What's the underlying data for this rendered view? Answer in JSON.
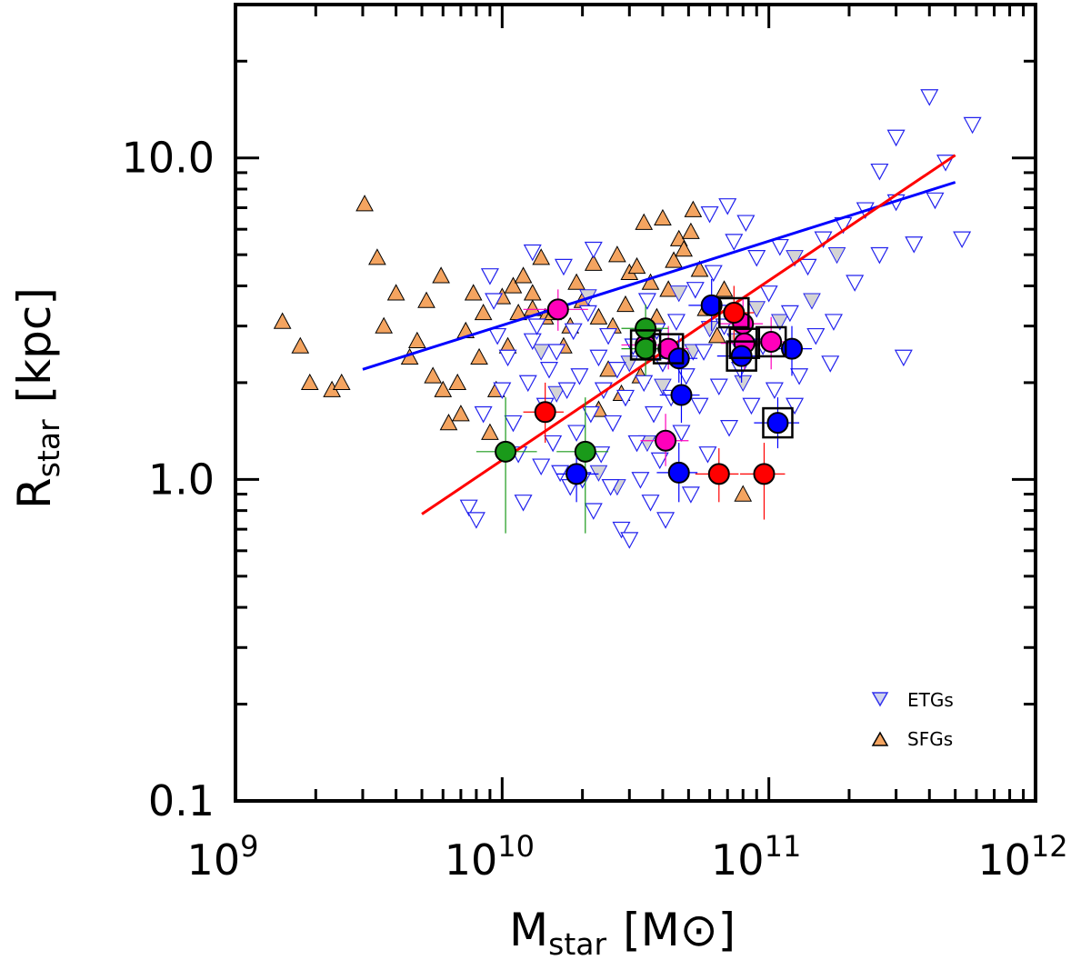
{
  "chart_data": {
    "type": "scatter",
    "title": "",
    "xlabel": {
      "main": "M",
      "sub": "star",
      "unit": "[M⊙]"
    },
    "ylabel": {
      "main": "R",
      "sub": "star",
      "unit": "[kpc]"
    },
    "xscale": "log",
    "yscale": "log",
    "xlim": [
      1000000000.0,
      1000000000000.0
    ],
    "ylim": [
      0.1,
      30
    ],
    "x_ticks": [
      {
        "value": 1000000000.0,
        "base": "10",
        "exp": "9"
      },
      {
        "value": 10000000000.0,
        "base": "10",
        "exp": "10"
      },
      {
        "value": 100000000000.0,
        "base": "10",
        "exp": "11"
      },
      {
        "value": 1000000000000.0,
        "base": "10",
        "exp": "12"
      }
    ],
    "y_ticks": [
      {
        "value": 0.1,
        "label": "0.1"
      },
      {
        "value": 1,
        "label": "1.0"
      },
      {
        "value": 10,
        "label": "10.0"
      }
    ],
    "grid": false,
    "legend": {
      "position": "bottom-right",
      "entries": [
        {
          "label": "ETGs",
          "marker": "triangle-down",
          "color": "#ccd0e8",
          "edge": "#3333ee"
        },
        {
          "label": "SFGs",
          "marker": "triangle-up",
          "color": "#f4a460",
          "edge": "#000000"
        }
      ]
    },
    "colors": {
      "etg_edge": "#2222ee",
      "etg_fill_light": "#d4d4d4",
      "sfg_fill": "#f4a460",
      "blue": "#0000ff",
      "red": "#ff0000",
      "green": "#1a9a1a",
      "magenta": "#ff1ab4",
      "blue_line": "#0000ff",
      "red_line": "#ff0000"
    },
    "fits": [
      {
        "color": "#0000ff",
        "points": [
          [
            3000000000.0,
            2.2
          ],
          [
            500000000000.0,
            8.4
          ]
        ]
      },
      {
        "color": "#ff0000",
        "points": [
          [
            5000000000.0,
            0.78
          ],
          [
            500000000000.0,
            10.2
          ]
        ]
      }
    ],
    "sfgs": [
      [
        1500000000.0,
        3.1
      ],
      [
        1750000000.0,
        2.6
      ],
      [
        1900000000.0,
        2.0
      ],
      [
        2300000000.0,
        1.9
      ],
      [
        2500000000.0,
        2.0
      ],
      [
        3050000000.0,
        7.2
      ],
      [
        3400000000.0,
        4.9
      ],
      [
        3600000000.0,
        3.0
      ],
      [
        4000000000.0,
        3.8
      ],
      [
        4500000000.0,
        2.4
      ],
      [
        4800000000.0,
        2.7
      ],
      [
        5200000000.0,
        3.6
      ],
      [
        5500000000.0,
        2.1
      ],
      [
        5900000000.0,
        4.3
      ],
      [
        6000000000.0,
        1.9
      ],
      [
        6300000000.0,
        1.5
      ],
      [
        6800000000.0,
        2.0
      ],
      [
        7000000000.0,
        1.6
      ],
      [
        7300000000.0,
        2.9
      ],
      [
        7800000000.0,
        3.8
      ],
      [
        8200000000.0,
        2.4
      ],
      [
        8500000000.0,
        3.3
      ],
      [
        9000000000.0,
        1.4
      ],
      [
        9500000000.0,
        1.9
      ],
      [
        10000000000.0,
        3.7
      ],
      [
        10500000000.0,
        2.6
      ],
      [
        11000000000.0,
        4.0
      ],
      [
        11500000000.0,
        3.3
      ],
      [
        12000000000.0,
        4.3
      ],
      [
        13000000000.0,
        3.8
      ],
      [
        14000000000.0,
        4.9
      ],
      [
        14500000000.0,
        3.2
      ],
      [
        15500000000.0,
        3.3
      ],
      [
        17000000000.0,
        2.6
      ],
      [
        18000000000.0,
        3.0
      ],
      [
        19000000000.0,
        4.1
      ],
      [
        20000000000.0,
        3.6
      ],
      [
        22000000000.0,
        4.7
      ],
      [
        23000000000.0,
        3.2
      ],
      [
        25000000000.0,
        2.2
      ],
      [
        26000000000.0,
        3.0
      ],
      [
        27000000000.0,
        5.0
      ],
      [
        29000000000.0,
        3.5
      ],
      [
        30000000000.0,
        4.4
      ],
      [
        32000000000.0,
        4.6
      ],
      [
        34000000000.0,
        6.3
      ],
      [
        36000000000.0,
        4.1
      ],
      [
        38000000000.0,
        3.2
      ],
      [
        40000000000.0,
        6.5
      ],
      [
        42000000000.0,
        3.9
      ],
      [
        44000000000.0,
        4.8
      ],
      [
        46000000000.0,
        5.6
      ],
      [
        48000000000.0,
        5.2
      ],
      [
        51000000000.0,
        5.9
      ],
      [
        52000000000.0,
        6.9
      ],
      [
        55000000000.0,
        4.5
      ],
      [
        58000000000.0,
        3.4
      ],
      [
        23000000000.0,
        1.65
      ],
      [
        28000000000.0,
        1.85
      ],
      [
        33000000000.0,
        2.1
      ],
      [
        64000000000.0,
        2.8
      ],
      [
        68000000000.0,
        3.9
      ],
      [
        80000000000.0,
        0.9
      ],
      [
        13000000000.0,
        3.4
      ]
    ],
    "etgs": [
      [
        7500000000.0,
        0.82
      ],
      [
        8000000000.0,
        0.75
      ],
      [
        8500000000.0,
        1.6
      ],
      [
        9000000000.0,
        4.3
      ],
      [
        9300000000.0,
        3.6
      ],
      [
        9600000000.0,
        2.8
      ],
      [
        10000000000.0,
        1.9
      ],
      [
        10500000000.0,
        2.4
      ],
      [
        11000000000.0,
        1.5
      ],
      [
        11500000000.0,
        1.2
      ],
      [
        12000000000.0,
        0.85
      ],
      [
        12500000000.0,
        2.0
      ],
      [
        13000000000.0,
        2.7
      ],
      [
        13500000000.0,
        3.0
      ],
      [
        14000000000.0,
        1.1
      ],
      [
        14500000000.0,
        1.7
      ],
      [
        15000000000.0,
        2.2
      ],
      [
        15500000000.0,
        1.3
      ],
      [
        16000000000.0,
        2.5
      ],
      [
        16500000000.0,
        1.05
      ],
      [
        17000000000.0,
        4.6
      ],
      [
        17500000000.0,
        1.9
      ],
      [
        18000000000.0,
        0.95
      ],
      [
        18500000000.0,
        2.9
      ],
      [
        19000000000.0,
        1.4
      ],
      [
        19500000000.0,
        2.1
      ],
      [
        20000000000.0,
        1.0
      ],
      [
        21000000000.0,
        3.3
      ],
      [
        21500000000.0,
        1.6
      ],
      [
        22000000000.0,
        0.8
      ],
      [
        23000000000.0,
        2.4
      ],
      [
        23500000000.0,
        1.2
      ],
      [
        24000000000.0,
        1.9
      ],
      [
        25000000000.0,
        2.8
      ],
      [
        25500000000.0,
        0.95
      ],
      [
        26000000000.0,
        1.5
      ],
      [
        27000000000.0,
        2.2
      ],
      [
        28000000000.0,
        0.7
      ],
      [
        29000000000.0,
        1.8
      ],
      [
        30000000000.0,
        0.65
      ],
      [
        31000000000.0,
        2.6
      ],
      [
        32000000000.0,
        1.3
      ],
      [
        33000000000.0,
        1.0
      ],
      [
        34000000000.0,
        2.0
      ],
      [
        35000000000.0,
        3.6
      ],
      [
        36000000000.0,
        0.85
      ],
      [
        37000000000.0,
        1.6
      ],
      [
        38000000000.0,
        2.9
      ],
      [
        39000000000.0,
        1.15
      ],
      [
        40000000000.0,
        2.3
      ],
      [
        41000000000.0,
        0.75
      ],
      [
        43000000000.0,
        1.8
      ],
      [
        45000000000.0,
        3.1
      ],
      [
        47000000000.0,
        1.4
      ],
      [
        49000000000.0,
        2.1
      ],
      [
        51000000000.0,
        0.9
      ],
      [
        53000000000.0,
        3.9
      ],
      [
        55000000000.0,
        1.7
      ],
      [
        57000000000.0,
        2.5
      ],
      [
        59000000000.0,
        1.2
      ],
      [
        62000000000.0,
        4.4
      ],
      [
        65000000000.0,
        1.95
      ],
      [
        68000000000.0,
        3.0
      ],
      [
        71000000000.0,
        1.45
      ],
      [
        74000000000.0,
        5.5
      ],
      [
        78000000000.0,
        2.2
      ],
      [
        82000000000.0,
        6.3
      ],
      [
        86000000000.0,
        1.7
      ],
      [
        90000000000.0,
        4.9
      ],
      [
        95000000000.0,
        2.6
      ],
      [
        100000000000.0,
        3.8
      ],
      [
        105000000000.0,
        1.9
      ],
      [
        110000000000.0,
        5.3
      ],
      [
        120000000000.0,
        3.3
      ],
      [
        130000000000.0,
        2.1
      ],
      [
        140000000000.0,
        4.6
      ],
      [
        150000000000.0,
        2.8
      ],
      [
        160000000000.0,
        5.6
      ],
      [
        175000000000.0,
        3.1
      ],
      [
        190000000000.0,
        6.2
      ],
      [
        210000000000.0,
        4.1
      ],
      [
        230000000000.0,
        6.9
      ],
      [
        260000000000.0,
        5.0
      ],
      [
        300000000000.0,
        7.3
      ],
      [
        320000000000.0,
        2.4
      ],
      [
        350000000000.0,
        5.4
      ],
      [
        400000000000.0,
        15.5
      ],
      [
        420000000000.0,
        7.4
      ],
      [
        460000000000.0,
        9.7
      ],
      [
        530000000000.0,
        5.6
      ],
      [
        580000000000.0,
        12.7
      ],
      [
        300000000000.0,
        11.6
      ],
      [
        260000000000.0,
        9.1
      ],
      [
        170000000000.0,
        2.3
      ],
      [
        60000000000.0,
        6.7
      ],
      [
        70000000000.0,
        7.1
      ],
      [
        125000000000.0,
        1.7
      ],
      [
        22000000000.0,
        5.2
      ],
      [
        13000000000.0,
        5.1
      ]
    ],
    "etgs_light": [
      [
        16000000000.0,
        1.85
      ],
      [
        23000000000.0,
        1.05
      ],
      [
        30000000000.0,
        2.3
      ],
      [
        35000000000.0,
        1.3
      ],
      [
        40000000000.0,
        1.95
      ],
      [
        46000000000.0,
        3.8
      ],
      [
        52000000000.0,
        2.5
      ],
      [
        60000000000.0,
        2.95
      ],
      [
        75000000000.0,
        2.7
      ],
      [
        90000000000.0,
        3.4
      ],
      [
        110000000000.0,
        3.1
      ],
      [
        125000000000.0,
        4.9
      ],
      [
        145000000000.0,
        3.6
      ],
      [
        180000000000.0,
        5.0
      ],
      [
        21000000000.0,
        3.7
      ],
      [
        14000000000.0,
        2.5
      ],
      [
        27000000000.0,
        0.95
      ],
      [
        80000000000.0,
        2.0
      ]
    ],
    "samples": [
      {
        "color": "#ff00bb",
        "x": 16200000000.0,
        "y": 3.38,
        "xerr": [
          12000000000.0,
          21000000000.0
        ],
        "yerr": [
          2.9,
          3.9
        ],
        "box": false
      },
      {
        "color": "#ff00bb",
        "x": 34500000000.0,
        "y": 2.62,
        "xerr": [
          28000000000.0,
          42000000000.0
        ],
        "yerr": [
          2.2,
          3.1
        ],
        "box": true
      },
      {
        "color": "#ff00bb",
        "x": 42000000000.0,
        "y": 2.55,
        "xerr": [
          34000000000.0,
          50000000000.0
        ],
        "yerr": [
          2.2,
          3.0
        ],
        "box": true
      },
      {
        "color": "#ff00bb",
        "x": 41000000000.0,
        "y": 1.32,
        "xerr": [
          33000000000.0,
          50000000000.0
        ],
        "yerr": [
          1.1,
          1.6
        ],
        "box": false
      },
      {
        "color": "#ff00bb",
        "x": 80000000000.0,
        "y": 3.05,
        "xerr": [
          65000000000.0,
          95000000000.0
        ],
        "yerr": [
          2.5,
          3.7
        ],
        "box": false
      },
      {
        "color": "#ff00bb",
        "x": 81000000000.0,
        "y": 2.65,
        "xerr": [
          66000000000.0,
          98000000000.0
        ],
        "yerr": [
          2.2,
          3.2
        ],
        "box": true
      },
      {
        "color": "#ff00bb",
        "x": 102000000000.0,
        "y": 2.68,
        "xerr": [
          83000000000.0,
          122000000000.0
        ],
        "yerr": [
          2.2,
          3.2
        ],
        "box": true
      },
      {
        "color": "#1a9a1a",
        "x": 10300000000.0,
        "y": 1.22,
        "xerr": [
          8000000000.0,
          13500000000.0
        ],
        "yerr": [
          0.68,
          1.8
        ],
        "box": false
      },
      {
        "color": "#1a9a1a",
        "x": 20500000000.0,
        "y": 1.22,
        "xerr": [
          16000000000.0,
          25000000000.0
        ],
        "yerr": [
          0.68,
          1.8
        ],
        "box": false
      },
      {
        "color": "#1a9a1a",
        "x": 34500000000.0,
        "y": 2.95,
        "xerr": [
          28000000000.0,
          42000000000.0
        ],
        "yerr": [
          2.4,
          3.5
        ],
        "box": false
      },
      {
        "color": "#1a9a1a",
        "x": 34500000000.0,
        "y": 2.55,
        "xerr": [
          28000000000.0,
          42000000000.0
        ],
        "yerr": [
          2.1,
          3.1
        ],
        "box": false
      },
      {
        "color": "#0000ff",
        "x": 19000000000.0,
        "y": 1.04,
        "xerr": [
          16000000000.0,
          23000000000.0
        ],
        "yerr": [
          0.85,
          1.25
        ],
        "box": false
      },
      {
        "color": "#0000ff",
        "x": 46000000000.0,
        "y": 1.05,
        "xerr": [
          38000000000.0,
          54000000000.0
        ],
        "yerr": [
          0.85,
          1.3
        ],
        "box": false
      },
      {
        "color": "#0000ff",
        "x": 47000000000.0,
        "y": 1.83,
        "xerr": [
          39000000000.0,
          55000000000.0
        ],
        "yerr": [
          1.5,
          2.2
        ],
        "box": false
      },
      {
        "color": "#0000ff",
        "x": 46000000000.0,
        "y": 2.38,
        "xerr": [
          38000000000.0,
          54000000000.0
        ],
        "yerr": [
          2.0,
          2.8
        ],
        "box": false
      },
      {
        "color": "#0000ff",
        "x": 61000000000.0,
        "y": 3.48,
        "xerr": [
          50000000000.0,
          73000000000.0
        ],
        "yerr": [
          2.9,
          4.2
        ],
        "box": false
      },
      {
        "color": "#0000ff",
        "x": 79000000000.0,
        "y": 2.42,
        "xerr": [
          64000000000.0,
          94000000000.0
        ],
        "yerr": [
          2.0,
          2.9
        ],
        "box": true
      },
      {
        "color": "#0000ff",
        "x": 108000000000.0,
        "y": 1.5,
        "xerr": [
          88000000000.0,
          130000000000.0
        ],
        "yerr": [
          1.25,
          1.8
        ],
        "box": true
      },
      {
        "color": "#0000ff",
        "x": 122000000000.0,
        "y": 2.55,
        "xerr": [
          100000000000.0,
          145000000000.0
        ],
        "yerr": [
          2.1,
          3.0
        ],
        "box": false
      },
      {
        "color": "#ff0000",
        "x": 14500000000.0,
        "y": 1.62,
        "xerr": [
          12000000000.0,
          17000000000.0
        ],
        "yerr": [
          1.3,
          2.0
        ],
        "box": false
      },
      {
        "color": "#ff0000",
        "x": 65000000000.0,
        "y": 1.04,
        "xerr": [
          53000000000.0,
          77000000000.0
        ],
        "yerr": [
          0.85,
          1.25
        ],
        "box": false
      },
      {
        "color": "#ff0000",
        "x": 96000000000.0,
        "y": 1.04,
        "xerr": [
          78000000000.0,
          115000000000.0
        ],
        "yerr": [
          0.75,
          1.3
        ],
        "box": false
      },
      {
        "color": "#ff0000",
        "x": 74000000000.0,
        "y": 3.3,
        "xerr": [
          60000000000.0,
          88000000000.0
        ],
        "yerr": [
          2.7,
          4.0
        ],
        "box": true
      }
    ]
  }
}
